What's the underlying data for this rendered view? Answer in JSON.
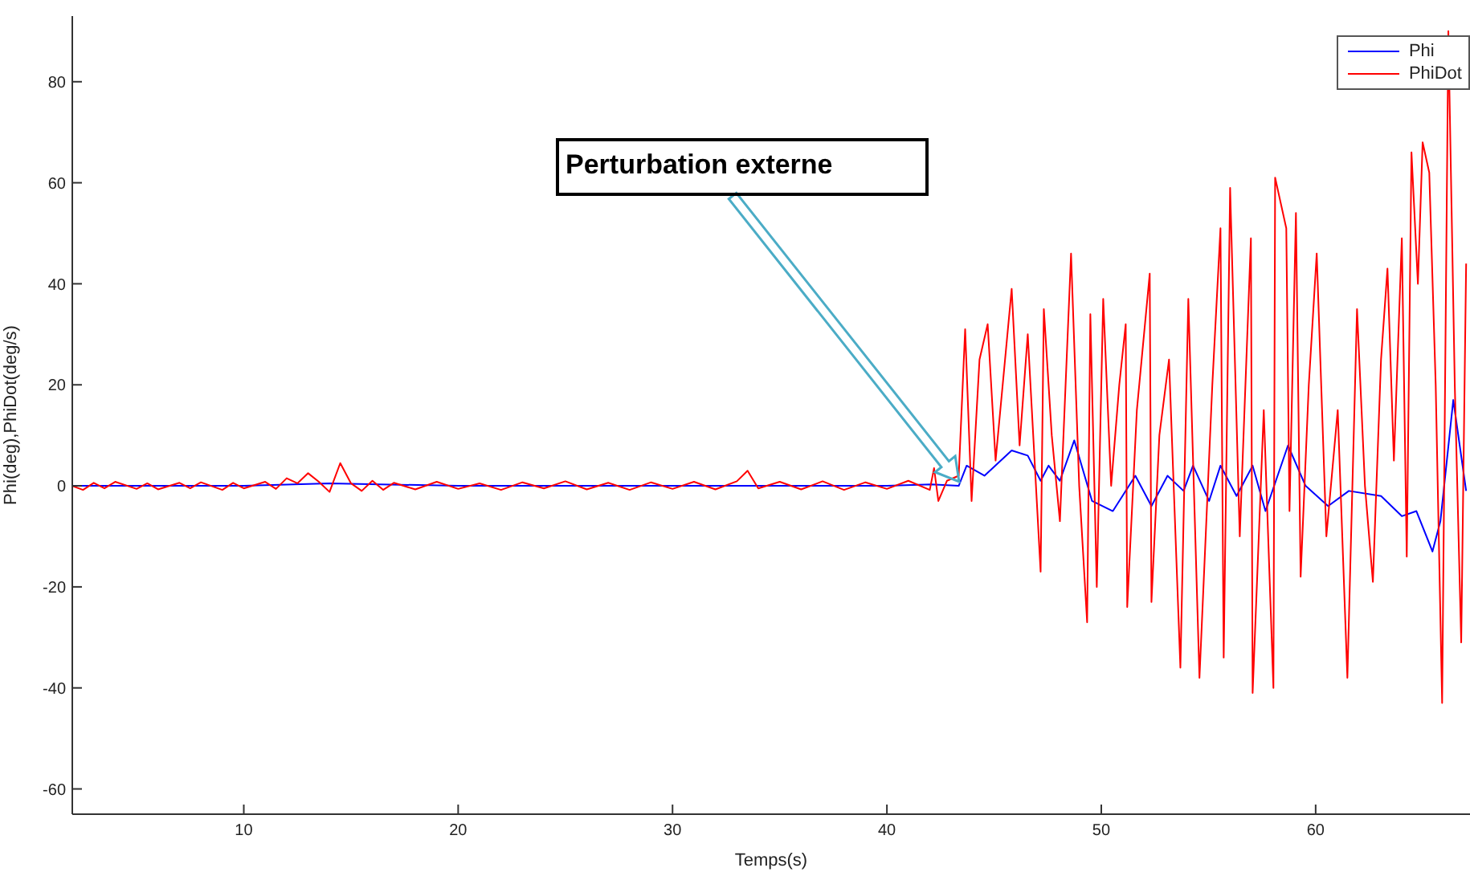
{
  "chart_data": {
    "type": "line",
    "xlabel": "Temps(s)",
    "ylabel": "Phi(deg),PhiDot(deg/s)",
    "xlim": [
      2,
      67.2
    ],
    "ylim": [
      -65,
      93
    ],
    "xticks": [
      10,
      20,
      30,
      40,
      50,
      60
    ],
    "yticks": [
      -60,
      -40,
      -20,
      0,
      20,
      40,
      60,
      80
    ],
    "grid": false,
    "legend": "top right",
    "marker": "none",
    "line_style": "solid",
    "annotations": [
      "Perturbation externe"
    ],
    "series": [
      {
        "name": "Phi",
        "color": "#0000ff",
        "x": [
          2,
          10,
          14,
          20,
          30,
          40,
          42.07,
          43.35,
          43.72,
          44.55,
          45.82,
          46.57,
          47.17,
          47.54,
          48.07,
          48.74,
          49.57,
          50.54,
          51.59,
          52.34,
          53.09,
          53.84,
          54.28,
          55.03,
          55.56,
          56.31,
          57.06,
          57.66,
          58.71,
          59.53,
          60.58,
          61.55,
          63.05,
          64.02,
          64.7,
          65.45,
          65.82,
          66.42,
          67.02
        ],
        "values": [
          0,
          0,
          0.5,
          0,
          0,
          0,
          0.3,
          0,
          4,
          2,
          7,
          6,
          1,
          4,
          1,
          9,
          -3,
          -5,
          2,
          -4,
          2,
          -1,
          4,
          -3,
          4,
          -2,
          4,
          -5,
          8,
          0,
          -4,
          -1,
          -2,
          -6,
          -5,
          -13,
          -7,
          17,
          -1
        ]
      },
      {
        "name": "PhiDot",
        "color": "#ff0000",
        "x": [
          2,
          2.5,
          3,
          3.5,
          4,
          5,
          5.5,
          6,
          7,
          7.5,
          8,
          9,
          9.5,
          10,
          11,
          11.5,
          12,
          12.5,
          13,
          13.5,
          14,
          14.5,
          15,
          15.5,
          16,
          16.5,
          17,
          18,
          19,
          20,
          21,
          22,
          23,
          24,
          25,
          26,
          27,
          28,
          29,
          30,
          31,
          32,
          33,
          33.5,
          34,
          35,
          36,
          37,
          38,
          39,
          40,
          41,
          42,
          42.2,
          42.4,
          42.8,
          43.35,
          43.65,
          43.95,
          44.32,
          44.7,
          45.07,
          45.82,
          46.19,
          46.57,
          47.17,
          47.32,
          47.69,
          48.07,
          48.59,
          48.97,
          49.34,
          49.49,
          49.79,
          50.09,
          50.46,
          50.84,
          51.14,
          51.21,
          51.66,
          52.26,
          52.34,
          52.71,
          53.16,
          53.69,
          54.06,
          54.58,
          55.18,
          55.56,
          55.71,
          56.01,
          56.46,
          56.98,
          57.06,
          57.58,
          58.03,
          58.11,
          58.63,
          58.78,
          59.08,
          59.3,
          59.68,
          60.05,
          60.5,
          61.03,
          61.48,
          61.93,
          62.3,
          62.67,
          63.05,
          63.35,
          63.65,
          64.02,
          64.25,
          64.47,
          64.77,
          64.99,
          65.3,
          65.6,
          65.9,
          66.19,
          66.49,
          66.79,
          67.02
        ],
        "values": [
          0,
          -0.8,
          0.6,
          -0.5,
          0.8,
          -0.6,
          0.5,
          -0.7,
          0.6,
          -0.5,
          0.7,
          -0.8,
          0.6,
          -0.5,
          0.8,
          -0.6,
          1.5,
          0.5,
          2.5,
          0.8,
          -1.2,
          4.5,
          0.5,
          -1,
          1,
          -0.8,
          0.6,
          -0.7,
          0.8,
          -0.6,
          0.5,
          -0.8,
          0.7,
          -0.5,
          0.9,
          -0.7,
          0.6,
          -0.8,
          0.7,
          -0.6,
          0.8,
          -0.7,
          0.9,
          3,
          -0.5,
          0.8,
          -0.7,
          0.9,
          -0.8,
          0.7,
          -0.6,
          1,
          -0.8,
          3.5,
          -3,
          1,
          2,
          31,
          -3,
          25,
          32,
          5,
          39,
          8,
          30,
          -17,
          35,
          10,
          -7,
          46,
          0,
          -27,
          34,
          -20,
          37,
          0,
          20,
          32,
          -24,
          15,
          42,
          -23,
          10,
          25,
          -36,
          37,
          -38,
          20,
          51,
          -34,
          59,
          -10,
          49,
          -41,
          15,
          -40,
          61,
          51,
          -5,
          54,
          -18,
          20,
          46,
          -10,
          15,
          -38,
          35,
          0,
          -19,
          25,
          43,
          5,
          49,
          -14,
          66,
          40,
          68,
          62,
          20,
          -43,
          90,
          20,
          -31,
          44
        ]
      }
    ]
  }
}
